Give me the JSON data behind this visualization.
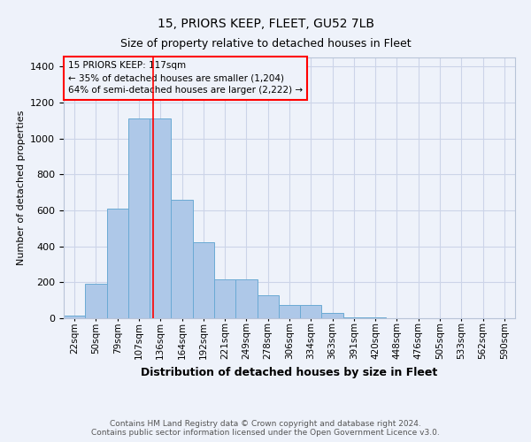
{
  "title1": "15, PRIORS KEEP, FLEET, GU52 7LB",
  "title2": "Size of property relative to detached houses in Fleet",
  "xlabel": "Distribution of detached houses by size in Fleet",
  "ylabel": "Number of detached properties",
  "annotation_line1": "15 PRIORS KEEP: 117sqm",
  "annotation_line2": "← 35% of detached houses are smaller (1,204)",
  "annotation_line3": "64% of semi-detached houses are larger (2,222) →",
  "footer1": "Contains HM Land Registry data © Crown copyright and database right 2024.",
  "footer2": "Contains public sector information licensed under the Open Government Licence v3.0.",
  "bar_color": "#aec8e8",
  "bar_edge_color": "#6aaad4",
  "categories": [
    "22sqm",
    "50sqm",
    "79sqm",
    "107sqm",
    "136sqm",
    "164sqm",
    "192sqm",
    "221sqm",
    "249sqm",
    "278sqm",
    "306sqm",
    "334sqm",
    "363sqm",
    "391sqm",
    "420sqm",
    "448sqm",
    "476sqm",
    "505sqm",
    "533sqm",
    "562sqm",
    "590sqm"
  ],
  "values": [
    15,
    190,
    610,
    1110,
    1110,
    660,
    425,
    215,
    215,
    130,
    75,
    75,
    30,
    5,
    5,
    2,
    2,
    2,
    2,
    2,
    2
  ],
  "red_line_index": 3.65,
  "ylim": [
    0,
    1450
  ],
  "yticks": [
    0,
    200,
    400,
    600,
    800,
    1000,
    1200,
    1400
  ],
  "grid_color": "#ccd4e8",
  "background_color": "#eef2fa",
  "title1_fontsize": 10,
  "title2_fontsize": 9,
  "ylabel_fontsize": 8,
  "xlabel_fontsize": 9,
  "tick_fontsize": 7.5,
  "ytick_fontsize": 8,
  "annotation_fontsize": 7.5,
  "footer_fontsize": 6.5
}
